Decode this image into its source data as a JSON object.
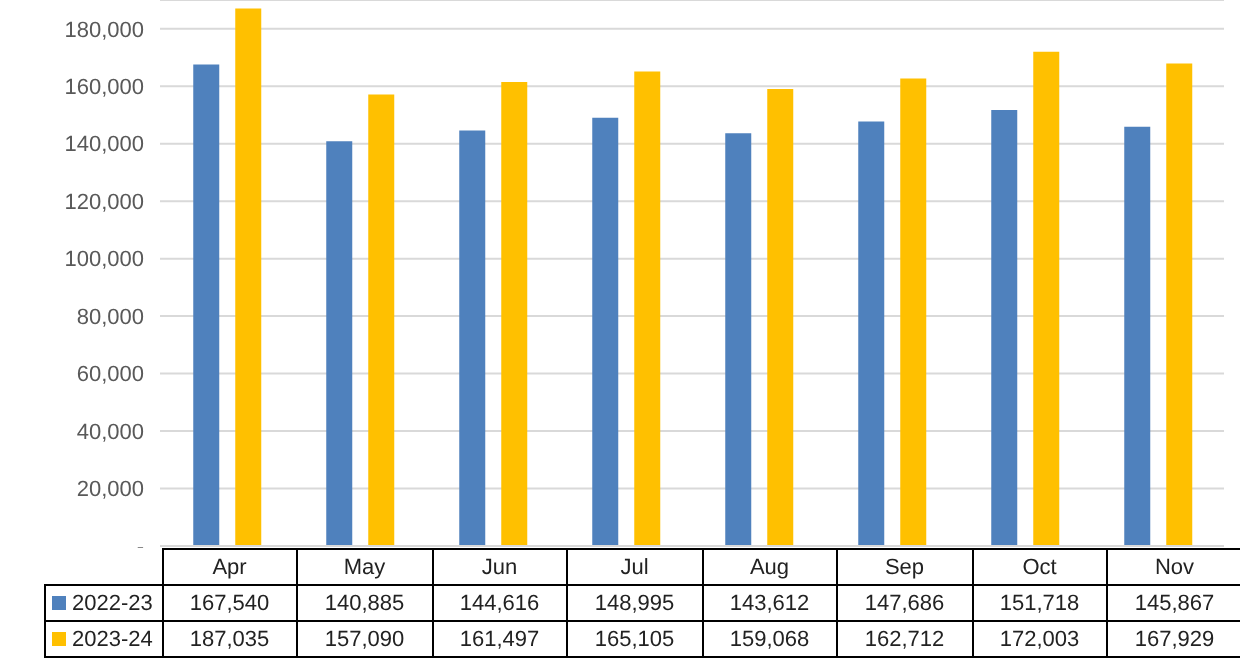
{
  "chart_data": {
    "type": "bar",
    "categories": [
      "Apr",
      "May",
      "Jun",
      "Jul",
      "Aug",
      "Sep",
      "Oct",
      "Nov"
    ],
    "series": [
      {
        "name": "2022-23",
        "color": "#4f81bd",
        "values": [
          167540,
          140885,
          144616,
          148995,
          143612,
          147686,
          151718,
          145867
        ],
        "value_labels": [
          "167,540",
          "140,885",
          "144,616",
          "148,995",
          "143,612",
          "147,686",
          "151,718",
          "145,867"
        ]
      },
      {
        "name": "2023-24",
        "color": "#ffc000",
        "values": [
          187035,
          157090,
          161497,
          165105,
          159068,
          162712,
          172003,
          167929
        ],
        "value_labels": [
          "187,035",
          "157,090",
          "161,497",
          "165,105",
          "159,068",
          "162,712",
          "172,003",
          "167,929"
        ]
      }
    ],
    "ylim": [
      0,
      190000
    ],
    "yticks": [
      {
        "value": 0,
        "label": "-"
      },
      {
        "value": 20000,
        "label": "20,000"
      },
      {
        "value": 40000,
        "label": "40,000"
      },
      {
        "value": 60000,
        "label": "60,000"
      },
      {
        "value": 80000,
        "label": "80,000"
      },
      {
        "value": 100000,
        "label": "100,000"
      },
      {
        "value": 120000,
        "label": "120,000"
      },
      {
        "value": 140000,
        "label": "140,000"
      },
      {
        "value": 160000,
        "label": "160,000"
      },
      {
        "value": 180000,
        "label": "180,000"
      }
    ],
    "grid": "y",
    "legend": "bottom"
  }
}
